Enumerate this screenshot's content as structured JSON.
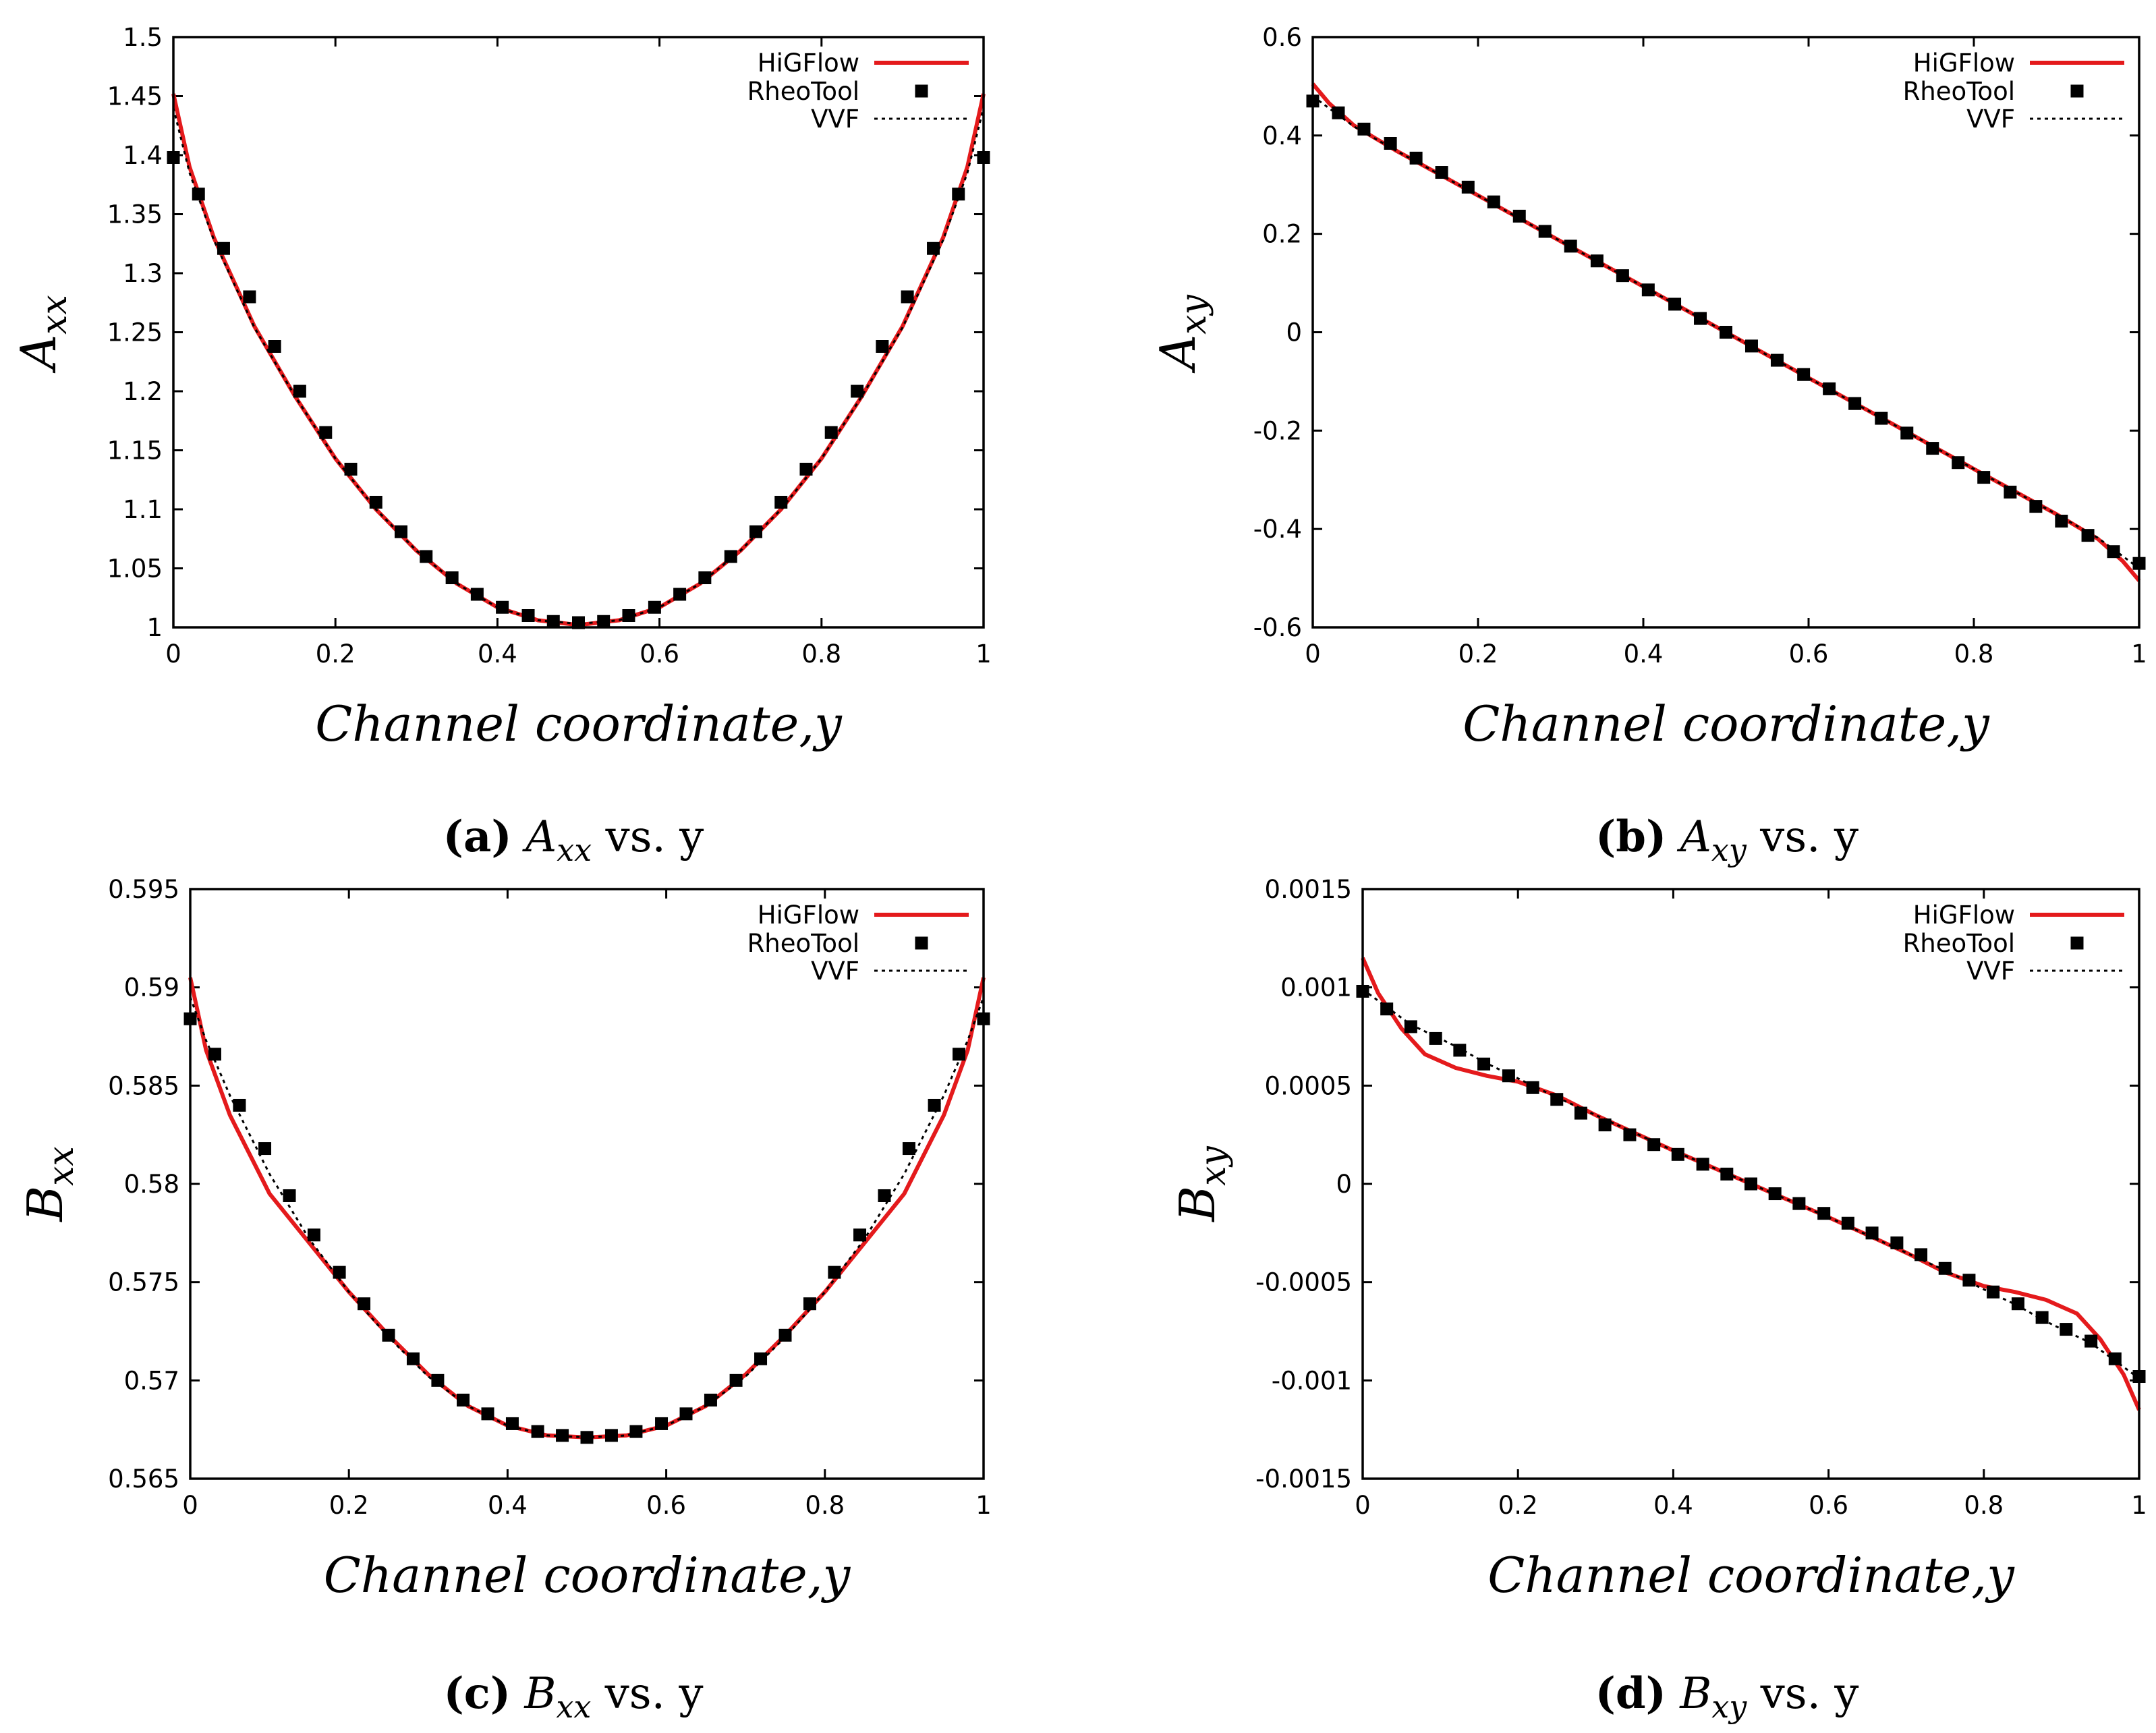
{
  "chart_data": [
    {
      "type": "line",
      "panel": "a",
      "caption": {
        "letter": "(a)",
        "text": "A",
        "sub": "xx",
        "suffix": " vs. y"
      },
      "xlabel": "Channel coordinate,y",
      "ylabel": {
        "main": "A",
        "sub": "xx"
      },
      "xlim": [
        0,
        1
      ],
      "ylim": [
        1,
        1.5
      ],
      "xticks": [
        0,
        0.2,
        0.4,
        0.6,
        0.8,
        1
      ],
      "yticks": [
        1,
        1.05,
        1.1,
        1.15,
        1.2,
        1.25,
        1.3,
        1.35,
        1.4,
        1.45,
        1.5
      ],
      "xtick_labels": [
        "0",
        "0.2",
        "0.4",
        "0.6",
        "0.8",
        "1"
      ],
      "ytick_labels": [
        "1",
        "1.05",
        "1.1",
        "1.15",
        "1.2",
        "1.25",
        "1.3",
        "1.35",
        "1.4",
        "1.45",
        "1.5"
      ],
      "legend_position": "top-right",
      "series": [
        {
          "name": "HiGFlow",
          "style": "line",
          "color": "#e41a1c",
          "x": [
            0,
            0.02,
            0.05,
            0.1,
            0.15,
            0.2,
            0.25,
            0.3,
            0.35,
            0.4,
            0.45,
            0.5,
            0.55,
            0.6,
            0.65,
            0.7,
            0.75,
            0.8,
            0.85,
            0.9,
            0.95,
            0.98,
            1
          ],
          "y": [
            1.452,
            1.39,
            1.33,
            1.255,
            1.196,
            1.143,
            1.1,
            1.065,
            1.037,
            1.017,
            1.006,
            1.002,
            1.006,
            1.017,
            1.037,
            1.065,
            1.1,
            1.143,
            1.196,
            1.255,
            1.33,
            1.39,
            1.452
          ]
        },
        {
          "name": "RheoTool",
          "style": "markers",
          "color": "#000000",
          "x": [
            0,
            0.031,
            0.062,
            0.094,
            0.125,
            0.156,
            0.188,
            0.219,
            0.25,
            0.281,
            0.312,
            0.344,
            0.375,
            0.406,
            0.438,
            0.469,
            0.5,
            0.531,
            0.562,
            0.594,
            0.625,
            0.656,
            0.688,
            0.719,
            0.75,
            0.781,
            0.812,
            0.844,
            0.875,
            0.906,
            0.938,
            0.969,
            1
          ],
          "y": [
            1.398,
            1.367,
            1.321,
            1.28,
            1.238,
            1.2,
            1.165,
            1.134,
            1.106,
            1.081,
            1.06,
            1.042,
            1.028,
            1.017,
            1.01,
            1.005,
            1.004,
            1.005,
            1.01,
            1.017,
            1.028,
            1.042,
            1.06,
            1.081,
            1.106,
            1.134,
            1.165,
            1.2,
            1.238,
            1.28,
            1.321,
            1.367,
            1.398
          ]
        },
        {
          "name": "VVF",
          "style": "dotted",
          "color": "#000000",
          "x": [
            0,
            0.02,
            0.05,
            0.1,
            0.15,
            0.2,
            0.25,
            0.3,
            0.35,
            0.4,
            0.45,
            0.5,
            0.55,
            0.6,
            0.65,
            0.7,
            0.75,
            0.8,
            0.85,
            0.9,
            0.95,
            0.98,
            1
          ],
          "y": [
            1.44,
            1.385,
            1.328,
            1.254,
            1.196,
            1.143,
            1.1,
            1.065,
            1.037,
            1.017,
            1.006,
            1.003,
            1.006,
            1.017,
            1.037,
            1.065,
            1.1,
            1.143,
            1.196,
            1.254,
            1.328,
            1.385,
            1.44
          ]
        }
      ]
    },
    {
      "type": "line",
      "panel": "b",
      "caption": {
        "letter": "(b)",
        "text": "A",
        "sub": "xy",
        "suffix": " vs. y"
      },
      "xlabel": "Channel coordinate,y",
      "ylabel": {
        "main": "A",
        "sub": "xy"
      },
      "xlim": [
        0,
        1
      ],
      "ylim": [
        -0.6,
        0.6
      ],
      "xticks": [
        0,
        0.2,
        0.4,
        0.6,
        0.8,
        1
      ],
      "yticks": [
        -0.6,
        -0.4,
        -0.2,
        0,
        0.2,
        0.4,
        0.6
      ],
      "xtick_labels": [
        "0",
        "0.2",
        "0.4",
        "0.6",
        "0.8",
        "1"
      ],
      "ytick_labels": [
        "-0.6",
        "-0.4",
        "-0.2",
        "0",
        "0.2",
        "0.4",
        "0.6"
      ],
      "legend_position": "top-right",
      "series": [
        {
          "name": "HiGFlow",
          "style": "line",
          "color": "#e41a1c",
          "x": [
            0,
            0.02,
            0.05,
            0.1,
            0.2,
            0.3,
            0.4,
            0.5,
            0.6,
            0.7,
            0.8,
            0.9,
            0.95,
            0.98,
            1
          ],
          "y": [
            0.505,
            0.465,
            0.42,
            0.37,
            0.278,
            0.185,
            0.093,
            0,
            -0.093,
            -0.185,
            -0.278,
            -0.37,
            -0.42,
            -0.465,
            -0.505
          ]
        },
        {
          "name": "RheoTool",
          "style": "markers",
          "color": "#000000",
          "x": [
            0,
            0.031,
            0.062,
            0.094,
            0.125,
            0.156,
            0.188,
            0.219,
            0.25,
            0.281,
            0.312,
            0.344,
            0.375,
            0.406,
            0.438,
            0.469,
            0.5,
            0.531,
            0.562,
            0.594,
            0.625,
            0.656,
            0.688,
            0.719,
            0.75,
            0.781,
            0.812,
            0.844,
            0.875,
            0.906,
            0.938,
            0.969,
            1
          ],
          "y": [
            0.47,
            0.446,
            0.413,
            0.384,
            0.354,
            0.325,
            0.295,
            0.265,
            0.236,
            0.205,
            0.175,
            0.145,
            0.115,
            0.086,
            0.057,
            0.028,
            0,
            -0.028,
            -0.057,
            -0.086,
            -0.115,
            -0.145,
            -0.175,
            -0.205,
            -0.236,
            -0.265,
            -0.295,
            -0.325,
            -0.354,
            -0.384,
            -0.413,
            -0.446,
            -0.47
          ]
        },
        {
          "name": "VVF",
          "style": "dotted",
          "color": "#000000",
          "x": [
            0,
            0.02,
            0.05,
            0.1,
            0.2,
            0.3,
            0.4,
            0.5,
            0.6,
            0.7,
            0.8,
            0.9,
            0.95,
            0.98,
            1
          ],
          "y": [
            0.48,
            0.455,
            0.418,
            0.37,
            0.278,
            0.185,
            0.093,
            0,
            -0.093,
            -0.185,
            -0.278,
            -0.37,
            -0.418,
            -0.455,
            -0.48
          ]
        }
      ]
    },
    {
      "type": "line",
      "panel": "c",
      "caption": {
        "letter": "(c)",
        "text": "B",
        "sub": "xx",
        "suffix": " vs. y"
      },
      "xlabel": "Channel coordinate,y",
      "ylabel": {
        "main": "B",
        "sub": "xx"
      },
      "xlim": [
        0,
        1
      ],
      "ylim": [
        0.565,
        0.595
      ],
      "xticks": [
        0,
        0.2,
        0.4,
        0.6,
        0.8,
        1
      ],
      "yticks": [
        0.565,
        0.57,
        0.575,
        0.58,
        0.585,
        0.59,
        0.595
      ],
      "xtick_labels": [
        "0",
        "0.2",
        "0.4",
        "0.6",
        "0.8",
        "1"
      ],
      "ytick_labels": [
        "0.565",
        "0.57",
        "0.575",
        "0.58",
        "0.585",
        "0.59",
        "0.595"
      ],
      "legend_position": "top-right",
      "series": [
        {
          "name": "HiGFlow",
          "style": "line",
          "color": "#e41a1c",
          "x": [
            0,
            0.02,
            0.05,
            0.1,
            0.15,
            0.2,
            0.25,
            0.3,
            0.35,
            0.4,
            0.45,
            0.5,
            0.55,
            0.6,
            0.65,
            0.7,
            0.75,
            0.8,
            0.85,
            0.9,
            0.95,
            0.98,
            1
          ],
          "y": [
            0.5905,
            0.5868,
            0.5835,
            0.5795,
            0.577,
            0.5745,
            0.5723,
            0.5703,
            0.5687,
            0.5677,
            0.5672,
            0.5671,
            0.5672,
            0.5677,
            0.5687,
            0.5703,
            0.5723,
            0.5745,
            0.577,
            0.5795,
            0.5835,
            0.5868,
            0.5905
          ]
        },
        {
          "name": "RheoTool",
          "style": "markers",
          "color": "#000000",
          "x": [
            0,
            0.031,
            0.062,
            0.094,
            0.125,
            0.156,
            0.188,
            0.219,
            0.25,
            0.281,
            0.312,
            0.344,
            0.375,
            0.406,
            0.438,
            0.469,
            0.5,
            0.531,
            0.562,
            0.594,
            0.625,
            0.656,
            0.688,
            0.719,
            0.75,
            0.781,
            0.812,
            0.844,
            0.875,
            0.906,
            0.938,
            0.969,
            1
          ],
          "y": [
            0.5884,
            0.5866,
            0.584,
            0.5818,
            0.5794,
            0.5774,
            0.5755,
            0.5739,
            0.5723,
            0.5711,
            0.57,
            0.569,
            0.5683,
            0.5678,
            0.5674,
            0.5672,
            0.5671,
            0.5672,
            0.5674,
            0.5678,
            0.5683,
            0.569,
            0.57,
            0.5711,
            0.5723,
            0.5739,
            0.5755,
            0.5774,
            0.5794,
            0.5818,
            0.584,
            0.5866,
            0.5884
          ]
        },
        {
          "name": "VVF",
          "style": "dotted",
          "color": "#000000",
          "x": [
            0,
            0.02,
            0.05,
            0.1,
            0.15,
            0.2,
            0.25,
            0.3,
            0.35,
            0.4,
            0.45,
            0.5,
            0.55,
            0.6,
            0.65,
            0.7,
            0.75,
            0.8,
            0.85,
            0.9,
            0.95,
            0.98,
            1
          ],
          "y": [
            0.5895,
            0.5873,
            0.5845,
            0.5805,
            0.5772,
            0.5745,
            0.5722,
            0.5702,
            0.5687,
            0.5677,
            0.5672,
            0.5671,
            0.5672,
            0.5677,
            0.5687,
            0.5702,
            0.5722,
            0.5745,
            0.5772,
            0.5805,
            0.5845,
            0.5873,
            0.5895
          ]
        }
      ]
    },
    {
      "type": "line",
      "panel": "d",
      "caption": {
        "letter": "(d)",
        "text": "B",
        "sub": "xy",
        "suffix": " vs. y"
      },
      "xlabel": "Channel coordinate,y",
      "ylabel": {
        "main": "B",
        "sub": "xy"
      },
      "xlim": [
        0,
        1
      ],
      "ylim": [
        -0.0015,
        0.0015
      ],
      "xticks": [
        0,
        0.2,
        0.4,
        0.6,
        0.8,
        1
      ],
      "yticks": [
        -0.0015,
        -0.001,
        -0.0005,
        0,
        0.0005,
        0.001,
        0.0015
      ],
      "xtick_labels": [
        "0",
        "0.2",
        "0.4",
        "0.6",
        "0.8",
        "1"
      ],
      "ytick_labels": [
        "-0.0015",
        "-0.001",
        "-0.0005",
        "0",
        "0.0005",
        "0.001",
        "0.0015"
      ],
      "legend_position": "top-right",
      "series": [
        {
          "name": "HiGFlow",
          "style": "line",
          "color": "#e41a1c",
          "x": [
            0,
            0.02,
            0.05,
            0.08,
            0.12,
            0.16,
            0.2,
            0.25,
            0.3,
            0.35,
            0.4,
            0.45,
            0.5,
            0.55,
            0.6,
            0.65,
            0.7,
            0.75,
            0.8,
            0.84,
            0.88,
            0.92,
            0.95,
            0.98,
            1
          ],
          "y": [
            0.00115,
            0.00097,
            0.00079,
            0.00066,
            0.00059,
            0.00055,
            0.00052,
            0.00045,
            0.00035,
            0.00026,
            0.00017,
            8.5e-05,
            0,
            -8.5e-05,
            -0.00017,
            -0.00026,
            -0.00035,
            -0.00045,
            -0.00052,
            -0.00055,
            -0.00059,
            -0.00066,
            -0.00079,
            -0.00097,
            -0.00115
          ]
        },
        {
          "name": "RheoTool",
          "style": "markers",
          "color": "#000000",
          "x": [
            0,
            0.031,
            0.062,
            0.094,
            0.125,
            0.156,
            0.188,
            0.219,
            0.25,
            0.281,
            0.312,
            0.344,
            0.375,
            0.406,
            0.438,
            0.469,
            0.5,
            0.531,
            0.562,
            0.594,
            0.625,
            0.656,
            0.688,
            0.719,
            0.75,
            0.781,
            0.812,
            0.844,
            0.875,
            0.906,
            0.938,
            0.969,
            1
          ],
          "y": [
            0.00098,
            0.00089,
            0.0008,
            0.00074,
            0.00068,
            0.00061,
            0.00055,
            0.00049,
            0.00043,
            0.00036,
            0.0003,
            0.00025,
            0.0002,
            0.00015,
            0.0001,
            5e-05,
            0,
            -5e-05,
            -0.0001,
            -0.00015,
            -0.0002,
            -0.00025,
            -0.0003,
            -0.00036,
            -0.00043,
            -0.00049,
            -0.00055,
            -0.00061,
            -0.00068,
            -0.00074,
            -0.0008,
            -0.00089,
            -0.00098
          ]
        },
        {
          "name": "VVF",
          "style": "dotted",
          "color": "#000000",
          "x": [
            0,
            0.031,
            0.062,
            0.094,
            0.125,
            0.156,
            0.188,
            0.25,
            0.3,
            0.4,
            0.5,
            0.6,
            0.7,
            0.75,
            0.812,
            0.844,
            0.875,
            0.906,
            0.938,
            0.969,
            1
          ],
          "y": [
            0.00099,
            0.0009,
            0.00081,
            0.00075,
            0.00069,
            0.00062,
            0.00056,
            0.00044,
            0.00035,
            0.00017,
            0,
            -0.00017,
            -0.00035,
            -0.00044,
            -0.00056,
            -0.00062,
            -0.00069,
            -0.00075,
            -0.00081,
            -0.0009,
            -0.00099
          ]
        }
      ]
    }
  ]
}
